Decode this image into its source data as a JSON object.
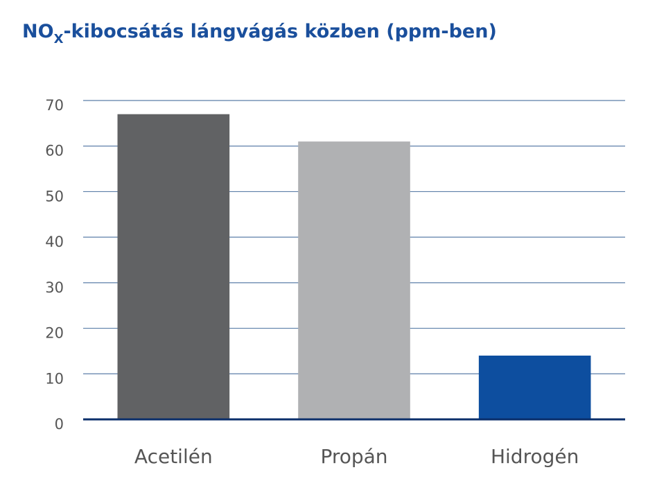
{
  "chart_data": {
    "type": "bar",
    "title": [
      "NO",
      "X",
      "-kibocsátás lángvágás közben (ppm-ben)"
    ],
    "categories": [
      "Acetilén",
      "Propán",
      "Hidrogén"
    ],
    "values": [
      67,
      61,
      14
    ],
    "colors": [
      "#616264",
      "#b0b1b3",
      "#0d4e9f"
    ],
    "ylim": [
      0,
      70
    ],
    "yticks": [
      0,
      10,
      20,
      30,
      40,
      50,
      60,
      70
    ],
    "grid": true
  }
}
